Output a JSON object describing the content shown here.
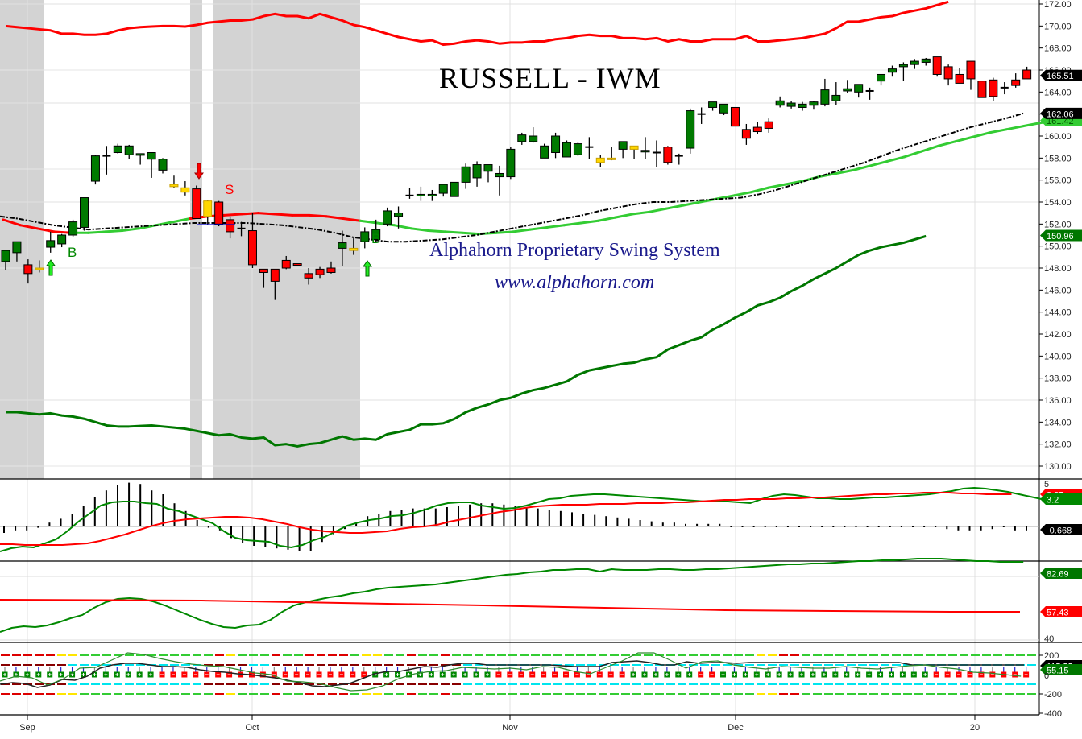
{
  "chart_data": {
    "type": "candlestick",
    "title": "RUSSELL - IWM",
    "subtitle": "Alphahorn Proprietary Swing System",
    "watermark_url": "www.alphahorn.com",
    "x_tick_labels": [
      "Sep",
      "Oct",
      "Nov",
      "Dec",
      "20"
    ],
    "price_axis": {
      "ticks": [
        "172.00",
        "170.00",
        "168.00",
        "166.00",
        "164.00",
        "162.00",
        "160.00",
        "158.00",
        "156.00",
        "154.00",
        "152.00",
        "150.00",
        "148.00",
        "146.00",
        "144.00",
        "142.00",
        "140.00",
        "138.00",
        "136.00",
        "134.00",
        "132.00",
        "130.00"
      ],
      "ylim": [
        129,
        172.3
      ]
    },
    "price_labels": [
      {
        "value": "165.51",
        "color": "#000000"
      },
      {
        "value": "162.06",
        "color": "#000000"
      },
      {
        "value": "161.42",
        "color": "#33cc33"
      },
      {
        "value": "150.96",
        "color": "#007700"
      }
    ],
    "candles": [
      {
        "o": 148.6,
        "h": 149.6,
        "l": 147.8,
        "c": 149.6,
        "col": "g"
      },
      {
        "o": 149.4,
        "h": 150.4,
        "l": 148.6,
        "c": 150.4,
        "col": "g"
      },
      {
        "o": 148.3,
        "h": 148.8,
        "l": 146.6,
        "c": 147.5,
        "col": "r"
      },
      {
        "o": 147.9,
        "h": 148.7,
        "l": 147.6,
        "c": 148.0,
        "col": "y"
      },
      {
        "o": 149.9,
        "h": 151.3,
        "l": 149.4,
        "c": 150.5,
        "col": "g"
      },
      {
        "o": 150.2,
        "h": 151.1,
        "l": 149.9,
        "c": 151.0,
        "col": "g"
      },
      {
        "o": 151.0,
        "h": 152.4,
        "l": 150.8,
        "c": 152.2,
        "col": "g"
      },
      {
        "o": 151.7,
        "h": 154.4,
        "l": 151.4,
        "c": 154.4,
        "col": "g"
      },
      {
        "o": 155.9,
        "h": 158.3,
        "l": 155.6,
        "c": 158.2,
        "col": "g"
      },
      {
        "o": 158.2,
        "h": 159.1,
        "l": 156.5,
        "c": 158.2,
        "col": "k"
      },
      {
        "o": 158.5,
        "h": 159.3,
        "l": 158.4,
        "c": 159.1,
        "col": "g"
      },
      {
        "o": 158.3,
        "h": 159.2,
        "l": 157.9,
        "c": 159.1,
        "col": "g"
      },
      {
        "o": 158.3,
        "h": 158.4,
        "l": 157.4,
        "c": 158.4,
        "col": "g"
      },
      {
        "o": 157.9,
        "h": 158.5,
        "l": 156.2,
        "c": 158.5,
        "col": "g"
      },
      {
        "o": 156.9,
        "h": 158.0,
        "l": 156.6,
        "c": 157.9,
        "col": "g"
      },
      {
        "o": 155.6,
        "h": 156.4,
        "l": 155.3,
        "c": 155.4,
        "col": "y"
      },
      {
        "o": 154.9,
        "h": 155.9,
        "l": 154.6,
        "c": 155.3,
        "col": "y"
      },
      {
        "o": 152.5,
        "h": 155.5,
        "l": 152.5,
        "c": 155.2,
        "col": "r"
      },
      {
        "o": 152.7,
        "h": 154.2,
        "l": 151.9,
        "c": 154.1,
        "col": "y"
      },
      {
        "o": 154.0,
        "h": 154.1,
        "l": 151.8,
        "c": 152.0,
        "col": "r"
      },
      {
        "o": 152.4,
        "h": 152.7,
        "l": 150.7,
        "c": 151.3,
        "col": "r"
      },
      {
        "o": 151.6,
        "h": 152.2,
        "l": 150.9,
        "c": 151.6,
        "col": "k"
      },
      {
        "o": 151.4,
        "h": 153.0,
        "l": 148.0,
        "c": 148.3,
        "col": "r"
      },
      {
        "o": 147.9,
        "h": 147.9,
        "l": 146.2,
        "c": 147.6,
        "col": "r"
      },
      {
        "o": 147.9,
        "h": 147.9,
        "l": 145.1,
        "c": 146.8,
        "col": "r"
      },
      {
        "o": 148.7,
        "h": 149.1,
        "l": 147.9,
        "c": 148.0,
        "col": "r"
      },
      {
        "o": 148.4,
        "h": 148.4,
        "l": 148.3,
        "c": 148.3,
        "col": "r"
      },
      {
        "o": 147.1,
        "h": 148.0,
        "l": 146.5,
        "c": 147.5,
        "col": "r"
      },
      {
        "o": 147.9,
        "h": 148.1,
        "l": 147.1,
        "c": 147.4,
        "col": "r"
      },
      {
        "o": 148.0,
        "h": 148.6,
        "l": 147.5,
        "c": 147.6,
        "col": "r"
      },
      {
        "o": 149.8,
        "h": 151.4,
        "l": 148.2,
        "c": 150.3,
        "col": "g"
      },
      {
        "o": 149.6,
        "h": 150.7,
        "l": 149.2,
        "c": 149.8,
        "col": "y"
      },
      {
        "o": 150.4,
        "h": 151.7,
        "l": 149.8,
        "c": 151.3,
        "col": "g"
      },
      {
        "o": 150.6,
        "h": 152.4,
        "l": 150.4,
        "c": 151.5,
        "col": "g"
      },
      {
        "o": 152.0,
        "h": 153.5,
        "l": 151.8,
        "c": 153.2,
        "col": "g"
      },
      {
        "o": 152.7,
        "h": 153.6,
        "l": 151.6,
        "c": 153.0,
        "col": "g"
      },
      {
        "o": 154.6,
        "h": 155.3,
        "l": 154.3,
        "c": 154.6,
        "col": "k"
      },
      {
        "o": 154.7,
        "h": 155.4,
        "l": 154.1,
        "c": 154.7,
        "col": "g"
      },
      {
        "o": 154.7,
        "h": 155.1,
        "l": 154.1,
        "c": 154.7,
        "col": "g"
      },
      {
        "o": 154.8,
        "h": 155.2,
        "l": 154.5,
        "c": 155.6,
        "col": "g"
      },
      {
        "o": 154.5,
        "h": 155.8,
        "l": 154.5,
        "c": 155.8,
        "col": "g"
      },
      {
        "o": 155.8,
        "h": 157.5,
        "l": 155.2,
        "c": 157.2,
        "col": "g"
      },
      {
        "o": 156.2,
        "h": 157.7,
        "l": 155.4,
        "c": 157.4,
        "col": "g"
      },
      {
        "o": 156.8,
        "h": 157.4,
        "l": 155.8,
        "c": 157.4,
        "col": "g"
      },
      {
        "o": 156.6,
        "h": 157.3,
        "l": 154.6,
        "c": 156.3,
        "col": "g"
      },
      {
        "o": 156.3,
        "h": 159.0,
        "l": 156.1,
        "c": 158.8,
        "col": "g"
      },
      {
        "o": 159.5,
        "h": 160.3,
        "l": 159.2,
        "c": 160.1,
        "col": "g"
      },
      {
        "o": 159.5,
        "h": 160.8,
        "l": 159.4,
        "c": 160.0,
        "col": "g"
      },
      {
        "o": 159.1,
        "h": 159.3,
        "l": 158.0,
        "c": 158.0,
        "col": "g"
      },
      {
        "o": 158.5,
        "h": 160.3,
        "l": 158.0,
        "c": 160.0,
        "col": "g"
      },
      {
        "o": 159.4,
        "h": 159.6,
        "l": 158.1,
        "c": 158.1,
        "col": "g"
      },
      {
        "o": 158.3,
        "h": 159.4,
        "l": 158.2,
        "c": 159.3,
        "col": "g"
      },
      {
        "o": 159.0,
        "h": 159.9,
        "l": 157.9,
        "c": 159.0,
        "col": "k"
      },
      {
        "o": 157.6,
        "h": 158.3,
        "l": 157.2,
        "c": 158.0,
        "col": "y"
      },
      {
        "o": 158.0,
        "h": 159.0,
        "l": 157.8,
        "c": 157.9,
        "col": "y"
      },
      {
        "o": 158.8,
        "h": 159.5,
        "l": 158.0,
        "c": 159.5,
        "col": "g"
      },
      {
        "o": 158.8,
        "h": 159.1,
        "l": 157.9,
        "c": 159.1,
        "col": "y"
      },
      {
        "o": 158.6,
        "h": 159.9,
        "l": 157.9,
        "c": 158.7,
        "col": "g"
      },
      {
        "o": 158.5,
        "h": 159.6,
        "l": 157.2,
        "c": 158.5,
        "col": "k"
      },
      {
        "o": 159.0,
        "h": 159.1,
        "l": 157.4,
        "c": 157.6,
        "col": "r"
      },
      {
        "o": 158.2,
        "h": 158.4,
        "l": 157.4,
        "c": 158.2,
        "col": "k"
      },
      {
        "o": 158.9,
        "h": 162.5,
        "l": 158.4,
        "c": 162.3,
        "col": "g"
      },
      {
        "o": 162.0,
        "h": 162.6,
        "l": 161.1,
        "c": 162.0,
        "col": "k"
      },
      {
        "o": 162.6,
        "h": 163.0,
        "l": 162.3,
        "c": 163.1,
        "col": "g"
      },
      {
        "o": 162.1,
        "h": 162.9,
        "l": 161.9,
        "c": 162.9,
        "col": "g"
      },
      {
        "o": 162.6,
        "h": 162.6,
        "l": 160.9,
        "c": 160.9,
        "col": "r"
      },
      {
        "o": 160.6,
        "h": 161.1,
        "l": 159.2,
        "c": 159.8,
        "col": "r"
      },
      {
        "o": 160.8,
        "h": 161.3,
        "l": 160.2,
        "c": 160.4,
        "col": "r"
      },
      {
        "o": 161.3,
        "h": 161.6,
        "l": 160.3,
        "c": 160.7,
        "col": "r"
      },
      {
        "o": 162.8,
        "h": 163.6,
        "l": 162.6,
        "c": 163.2,
        "col": "g"
      },
      {
        "o": 162.7,
        "h": 163.2,
        "l": 162.5,
        "c": 163.0,
        "col": "g"
      },
      {
        "o": 162.6,
        "h": 163.1,
        "l": 162.3,
        "c": 162.9,
        "col": "g"
      },
      {
        "o": 162.8,
        "h": 163.2,
        "l": 162.4,
        "c": 163.1,
        "col": "g"
      },
      {
        "o": 162.9,
        "h": 165.2,
        "l": 162.7,
        "c": 164.2,
        "col": "g"
      },
      {
        "o": 163.2,
        "h": 164.9,
        "l": 162.8,
        "c": 163.7,
        "col": "g"
      },
      {
        "o": 164.1,
        "h": 165.1,
        "l": 163.9,
        "c": 164.3,
        "col": "g"
      },
      {
        "o": 164.0,
        "h": 164.7,
        "l": 163.5,
        "c": 164.7,
        "col": "g"
      },
      {
        "o": 164.1,
        "h": 164.4,
        "l": 163.3,
        "c": 164.1,
        "col": "k"
      },
      {
        "o": 165.0,
        "h": 165.6,
        "l": 164.6,
        "c": 165.6,
        "col": "g"
      },
      {
        "o": 165.8,
        "h": 166.4,
        "l": 165.4,
        "c": 166.1,
        "col": "g"
      },
      {
        "o": 166.3,
        "h": 166.7,
        "l": 165.0,
        "c": 166.5,
        "col": "g"
      },
      {
        "o": 166.5,
        "h": 167.0,
        "l": 166.1,
        "c": 166.8,
        "col": "g"
      },
      {
        "o": 166.7,
        "h": 167.1,
        "l": 166.4,
        "c": 167.0,
        "col": "g"
      },
      {
        "o": 167.2,
        "h": 167.2,
        "l": 165.4,
        "c": 165.6,
        "col": "r"
      },
      {
        "o": 166.3,
        "h": 166.5,
        "l": 164.6,
        "c": 165.2,
        "col": "r"
      },
      {
        "o": 165.6,
        "h": 166.2,
        "l": 164.8,
        "c": 164.8,
        "col": "r"
      },
      {
        "o": 166.8,
        "h": 166.8,
        "l": 164.2,
        "c": 165.2,
        "col": "r"
      },
      {
        "o": 165.0,
        "h": 165.0,
        "l": 163.5,
        "c": 163.5,
        "col": "r"
      },
      {
        "o": 165.1,
        "h": 165.3,
        "l": 163.2,
        "c": 163.6,
        "col": "r"
      },
      {
        "o": 164.4,
        "h": 164.9,
        "l": 163.8,
        "c": 164.4,
        "col": "k"
      },
      {
        "o": 164.6,
        "h": 165.7,
        "l": 164.4,
        "c": 165.1,
        "col": "r"
      },
      {
        "o": 166.0,
        "h": 166.3,
        "l": 165.2,
        "c": 165.2,
        "col": "r"
      }
    ],
    "upper_band_red": [
      170.0,
      169.9,
      169.8,
      169.7,
      169.6,
      169.3,
      169.3,
      169.2,
      169.2,
      169.3,
      169.6,
      169.8,
      169.9,
      169.95,
      170.0,
      170.0,
      169.95,
      170.1,
      170.3,
      170.4,
      170.5,
      170.5,
      170.6,
      170.9,
      171.1,
      170.9,
      170.9,
      170.7,
      171.1,
      170.8,
      170.5,
      170.1,
      169.9,
      169.6,
      169.3,
      169.0,
      168.8,
      168.6,
      168.7,
      168.3,
      168.4,
      168.6,
      168.7,
      168.6,
      168.4,
      168.5,
      168.5,
      168.6,
      168.6,
      168.8,
      168.9,
      169.1,
      169.2,
      169.1,
      169.1,
      168.9,
      168.9,
      168.8,
      168.9,
      168.6,
      168.8,
      168.6,
      168.6,
      168.8,
      168.8,
      168.8,
      169.1,
      168.6,
      168.6,
      168.7,
      168.8,
      168.9,
      169.1,
      169.3,
      169.8,
      170.4,
      170.4,
      170.6,
      170.8,
      170.9,
      171.2,
      171.4,
      171.6,
      171.9,
      172.2
    ],
    "lower_band_green": [
      134.9,
      134.9,
      134.8,
      134.7,
      134.8,
      134.6,
      134.5,
      134.3,
      134.0,
      133.7,
      133.6,
      133.6,
      133.65,
      133.7,
      133.6,
      133.5,
      133.4,
      133.2,
      133.0,
      132.8,
      132.9,
      132.6,
      132.5,
      132.6,
      131.9,
      132.0,
      131.8,
      132.0,
      132.1,
      132.4,
      132.7,
      132.4,
      132.5,
      132.4,
      132.9,
      133.1,
      133.3,
      133.8,
      133.8,
      133.9,
      134.3,
      134.9,
      135.3,
      135.6,
      136.0,
      136.2,
      136.6,
      136.9,
      137.1,
      137.4,
      137.7,
      138.3,
      138.7,
      138.9,
      139.1,
      139.3,
      139.4,
      139.7,
      139.9,
      140.6,
      141.0,
      141.4,
      141.7,
      142.4,
      142.9,
      143.5,
      144.0,
      144.6,
      144.9,
      145.3,
      145.9,
      146.4,
      147.0,
      147.5,
      148.0,
      148.6,
      149.2,
      149.6,
      149.9,
      150.1,
      150.3,
      150.6,
      150.9
    ],
    "sma_green": [
      152.4,
      151.9,
      151.6,
      151.3,
      151.2,
      151.2,
      151.3,
      151.4,
      151.6,
      151.9,
      152.2,
      152.5,
      152.7,
      152.8,
      152.9,
      153.0,
      152.9,
      152.8,
      152.8,
      152.7,
      152.5,
      152.3,
      152.1,
      151.9,
      151.6,
      151.4,
      151.3,
      151.2,
      151.1,
      151.2,
      151.3,
      151.5,
      151.7,
      151.9,
      152.1,
      152.3,
      152.6,
      152.9,
      153.1,
      153.4,
      153.7,
      154.0,
      154.3,
      154.6,
      154.9,
      155.3,
      155.6,
      155.9,
      156.3,
      156.6,
      156.9,
      157.3,
      157.7,
      158.1,
      158.6,
      159.1,
      159.5,
      159.9,
      160.3,
      160.6,
      160.9,
      161.2,
      161.4
    ],
    "sma_black_dashdot": [
      152.7,
      152.5,
      152.2,
      151.9,
      151.7,
      151.5,
      151.6,
      151.7,
      151.8,
      151.9,
      152.0,
      152.1,
      152.1,
      152.1,
      152.1,
      152.0,
      151.9,
      151.7,
      151.5,
      151.2,
      150.8,
      150.6,
      150.4,
      150.4,
      150.5,
      150.6,
      150.8,
      151.0,
      151.3,
      151.6,
      151.9,
      152.2,
      152.5,
      152.8,
      153.2,
      153.5,
      153.8,
      154.0,
      154.0,
      154.1,
      154.2,
      154.3,
      154.4,
      154.7,
      155.1,
      155.6,
      156.1,
      156.6,
      157.1,
      157.6,
      158.2,
      158.8,
      159.3,
      159.8,
      160.3,
      160.8,
      161.2,
      161.6,
      162.06
    ],
    "shaded_regions": [
      [
        0,
        54
      ],
      [
        236,
        251
      ],
      [
        265,
        447
      ]
    ],
    "signals": [
      {
        "type": "buy",
        "label": "B",
        "x": 90
      },
      {
        "type": "sell",
        "label": "S",
        "x": 286
      },
      {
        "type": "buy",
        "label": "B",
        "x": 467
      }
    ],
    "macd_panel": {
      "axis_labels": [
        "5",
        "0"
      ],
      "value_labels": [
        {
          "value": "3.87",
          "color": "#ff0000"
        },
        {
          "value": "3.2",
          "color": "#008800"
        },
        {
          "value": "-0.668",
          "color": "#000000"
        }
      ]
    },
    "rsi_panel": {
      "axis_labels": [
        "80",
        "60",
        "40"
      ],
      "value_labels": [
        {
          "value": "82.69",
          "color": "#008800"
        },
        {
          "value": "57.43",
          "color": "#ff0000"
        }
      ]
    },
    "cci_panel": {
      "axis_labels": [
        "200",
        "0",
        "-200",
        "-400"
      ],
      "value_labels": [
        {
          "value": "115.55",
          "color": "#000000"
        },
        {
          "value": "55.15",
          "color": "#008800"
        }
      ]
    }
  }
}
